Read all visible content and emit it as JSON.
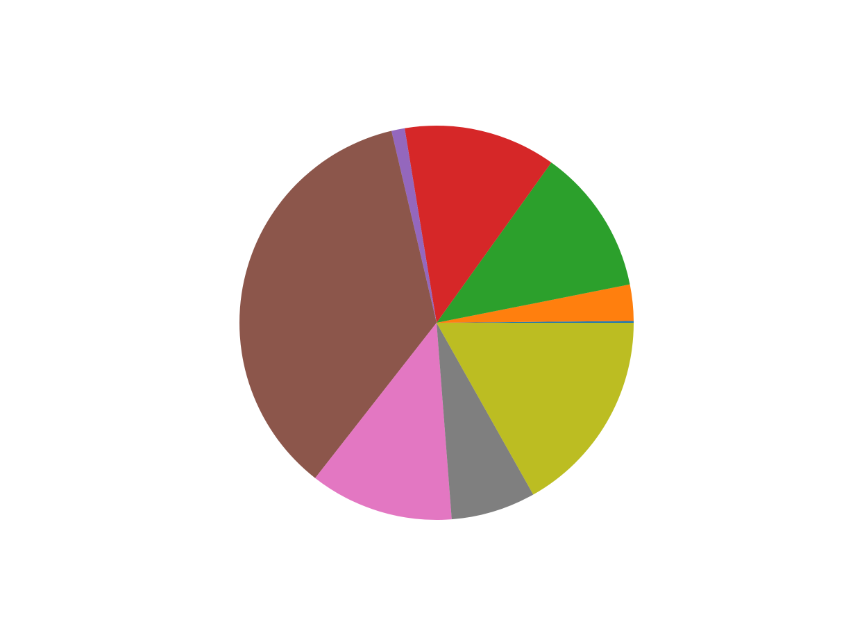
{
  "chart_data": {
    "type": "pie",
    "title": "",
    "start_angle_deg": 0,
    "direction": "counterclockwise",
    "legend": "none",
    "slices": [
      {
        "value": 0.15,
        "color": "#1f77b4"
      },
      {
        "value": 3.0,
        "color": "#ff7f0e"
      },
      {
        "value": 12.1,
        "color": "#2ca02c"
      },
      {
        "value": 12.6,
        "color": "#d62728"
      },
      {
        "value": 1.1,
        "color": "#9467bd"
      },
      {
        "value": 36.1,
        "color": "#8c564b"
      },
      {
        "value": 11.9,
        "color": "#e377c2"
      },
      {
        "value": 7.0,
        "color": "#7f7f7f"
      },
      {
        "value": 17.0,
        "color": "#bcbd22"
      }
    ]
  }
}
